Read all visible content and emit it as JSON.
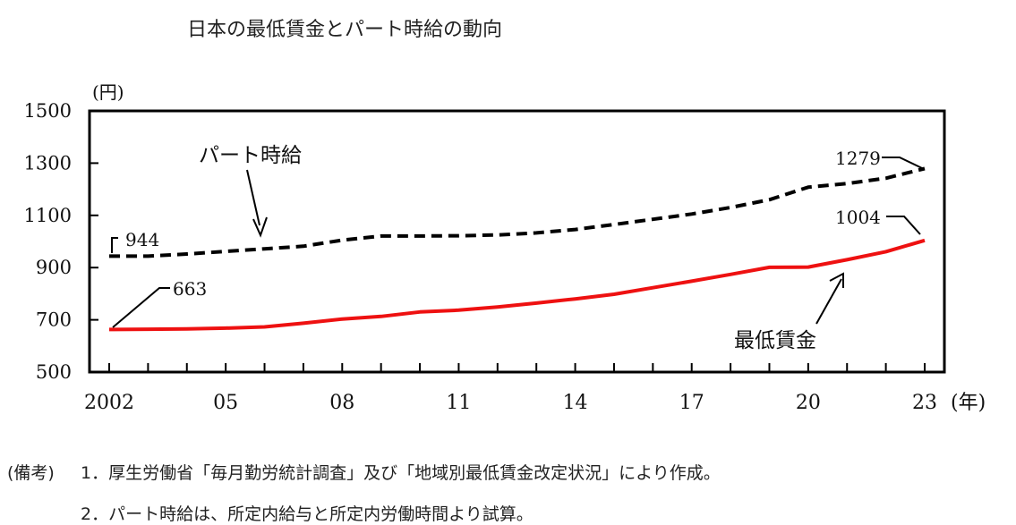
{
  "chart_data": {
    "type": "line",
    "title": "日本の最低賃金とパート時給の動向",
    "ylabel": "(円)",
    "xlabel": "(年)",
    "ylim": [
      500,
      1500
    ],
    "xlim": [
      2002,
      2023
    ],
    "yticks": [
      1500,
      1300,
      1100,
      900,
      700,
      500
    ],
    "xticks": [
      {
        "value": 2002,
        "label": "2002"
      },
      {
        "value": 2005,
        "label": "05"
      },
      {
        "value": 2008,
        "label": "08"
      },
      {
        "value": 2011,
        "label": "11"
      },
      {
        "value": 2014,
        "label": "14"
      },
      {
        "value": 2017,
        "label": "17"
      },
      {
        "value": 2020,
        "label": "20"
      },
      {
        "value": 2023,
        "label": "23"
      }
    ],
    "x": [
      2002,
      2003,
      2004,
      2005,
      2006,
      2007,
      2008,
      2009,
      2010,
      2011,
      2012,
      2013,
      2014,
      2015,
      2016,
      2017,
      2018,
      2019,
      2020,
      2021,
      2022,
      2023
    ],
    "series": [
      {
        "name": "パート時給",
        "color": "#000000",
        "style": "dashed",
        "values": [
          944,
          944,
          952,
          962,
          972,
          982,
          1005,
          1021,
          1021,
          1022,
          1025,
          1033,
          1046,
          1065,
          1085,
          1105,
          1130,
          1160,
          1208,
          1222,
          1242,
          1279
        ]
      },
      {
        "name": "最低賃金",
        "color": "#ee1111",
        "style": "solid",
        "values": [
          663,
          664,
          665,
          668,
          673,
          687,
          703,
          713,
          730,
          737,
          749,
          764,
          780,
          798,
          823,
          848,
          874,
          901,
          902,
          930,
          961,
          1004
        ]
      }
    ],
    "annotations": {
      "part_start": "944",
      "part_end": "1279",
      "min_start": "663",
      "min_end": "1004"
    }
  },
  "notes": {
    "label": "(備考)",
    "items": [
      "1．厚生労働省「毎月勤労統計調査」及び「地域別最低賃金改定状況」により作成。",
      "2．パート時給は、所定内給与と所定内労働時間より試算。"
    ]
  }
}
